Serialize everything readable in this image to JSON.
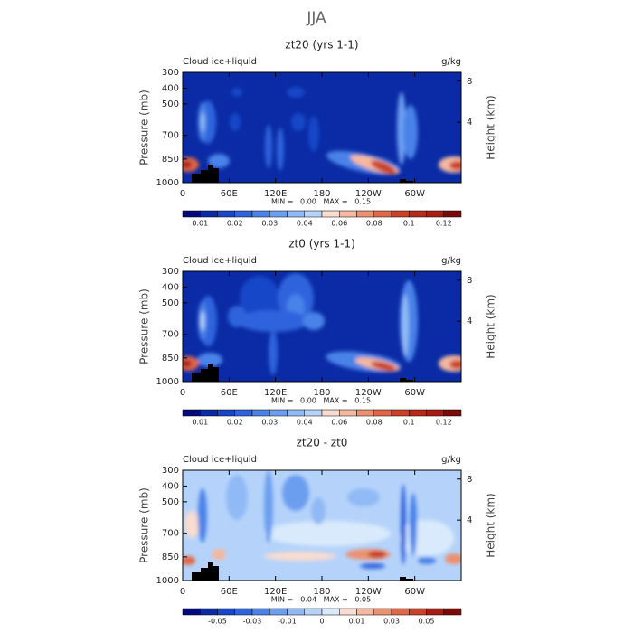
{
  "title": "JJA",
  "chart_data": [
    {
      "type": "contour",
      "title": "zt20 (yrs 1-1)",
      "left_label": "Cloud ice+liquid",
      "right_label": "g/kg",
      "ylabel": "Pressure (mb)",
      "y2label": "Height (km)",
      "xlim": [
        0,
        360
      ],
      "ylim": [
        1000,
        300
      ],
      "xticks": [
        0,
        {
          "value": 60,
          "label": "60E"
        },
        {
          "value": 120,
          "label": "120E"
        },
        180,
        {
          "value": 240,
          "label": "120W"
        },
        {
          "value": 300,
          "label": "60W"
        }
      ],
      "yticks": [
        300,
        400,
        500,
        700,
        850,
        1000
      ],
      "y2ticks": [
        4,
        8
      ],
      "stats": "MIN =   0.00   MAX =   0.15",
      "colorbar": {
        "colors": [
          "#000a7a",
          "#0a2ba5",
          "#1747c8",
          "#2d64dd",
          "#4a82e8",
          "#6c9ef0",
          "#90baf5",
          "#b5d3fa",
          "#f9dccf",
          "#f4b89f",
          "#ec9170",
          "#e06848",
          "#ca4128",
          "#b52a1a",
          "#a81c12",
          "#7a0a05"
        ],
        "levels": [
          0.01,
          0.015,
          0.02,
          0.025,
          0.03,
          0.035,
          0.04,
          0.05,
          0.06,
          0.07,
          0.08,
          0.09,
          0.1,
          0.11,
          0.12
        ],
        "ticks": [
          0.01,
          0.02,
          0.03,
          0.04,
          0.06,
          0.08,
          0.1,
          0.12
        ]
      }
    },
    {
      "type": "contour",
      "title": "zt0 (yrs 1-1)",
      "left_label": "Cloud ice+liquid",
      "right_label": "g/kg",
      "ylabel": "Pressure (mb)",
      "y2label": "Height (km)",
      "xlim": [
        0,
        360
      ],
      "ylim": [
        1000,
        300
      ],
      "xticks": [
        0,
        {
          "value": 60,
          "label": "60E"
        },
        {
          "value": 120,
          "label": "120E"
        },
        180,
        {
          "value": 240,
          "label": "120W"
        },
        {
          "value": 300,
          "label": "60W"
        }
      ],
      "yticks": [
        300,
        400,
        500,
        700,
        850,
        1000
      ],
      "y2ticks": [
        4,
        8
      ],
      "stats": "MIN =   0.00   MAX =   0.15",
      "colorbar": {
        "colors": [
          "#000a7a",
          "#0a2ba5",
          "#1747c8",
          "#2d64dd",
          "#4a82e8",
          "#6c9ef0",
          "#90baf5",
          "#b5d3fa",
          "#f9dccf",
          "#f4b89f",
          "#ec9170",
          "#e06848",
          "#ca4128",
          "#b52a1a",
          "#a81c12",
          "#7a0a05"
        ],
        "levels": [
          0.01,
          0.015,
          0.02,
          0.025,
          0.03,
          0.035,
          0.04,
          0.05,
          0.06,
          0.07,
          0.08,
          0.09,
          0.1,
          0.11,
          0.12
        ],
        "ticks": [
          0.01,
          0.02,
          0.03,
          0.04,
          0.06,
          0.08,
          0.1,
          0.12
        ]
      }
    },
    {
      "type": "contour",
      "title": "zt20 - zt0",
      "left_label": "Cloud ice+liquid",
      "right_label": "g/kg",
      "ylabel": "Pressure (mb)",
      "y2label": "Height (km)",
      "xlim": [
        0,
        360
      ],
      "ylim": [
        1000,
        300
      ],
      "xticks": [
        0,
        {
          "value": 60,
          "label": "60E"
        },
        {
          "value": 120,
          "label": "120E"
        },
        180,
        {
          "value": 240,
          "label": "120W"
        },
        {
          "value": 300,
          "label": "60W"
        }
      ],
      "yticks": [
        300,
        400,
        500,
        700,
        850,
        1000
      ],
      "y2ticks": [
        4,
        8
      ],
      "stats": "MIN =  -0.04   MAX =   0.05",
      "colorbar": {
        "colors": [
          "#000a7a",
          "#0a2ba5",
          "#1747c8",
          "#2d64dd",
          "#4a82e8",
          "#6c9ef0",
          "#90baf5",
          "#b5d3fa",
          "#d8eafc",
          "#f9dccf",
          "#f4b89f",
          "#ec9170",
          "#e06848",
          "#ca4128",
          "#a81c12",
          "#7a0a05"
        ],
        "levels": [
          -0.06,
          -0.05,
          -0.04,
          -0.03,
          -0.02,
          -0.01,
          -0.005,
          0,
          0.005,
          0.01,
          0.02,
          0.03,
          0.04,
          0.05,
          0.06
        ],
        "ticks": [
          -0.05,
          -0.03,
          -0.01,
          0,
          0.01,
          0.03,
          0.05
        ]
      }
    }
  ]
}
